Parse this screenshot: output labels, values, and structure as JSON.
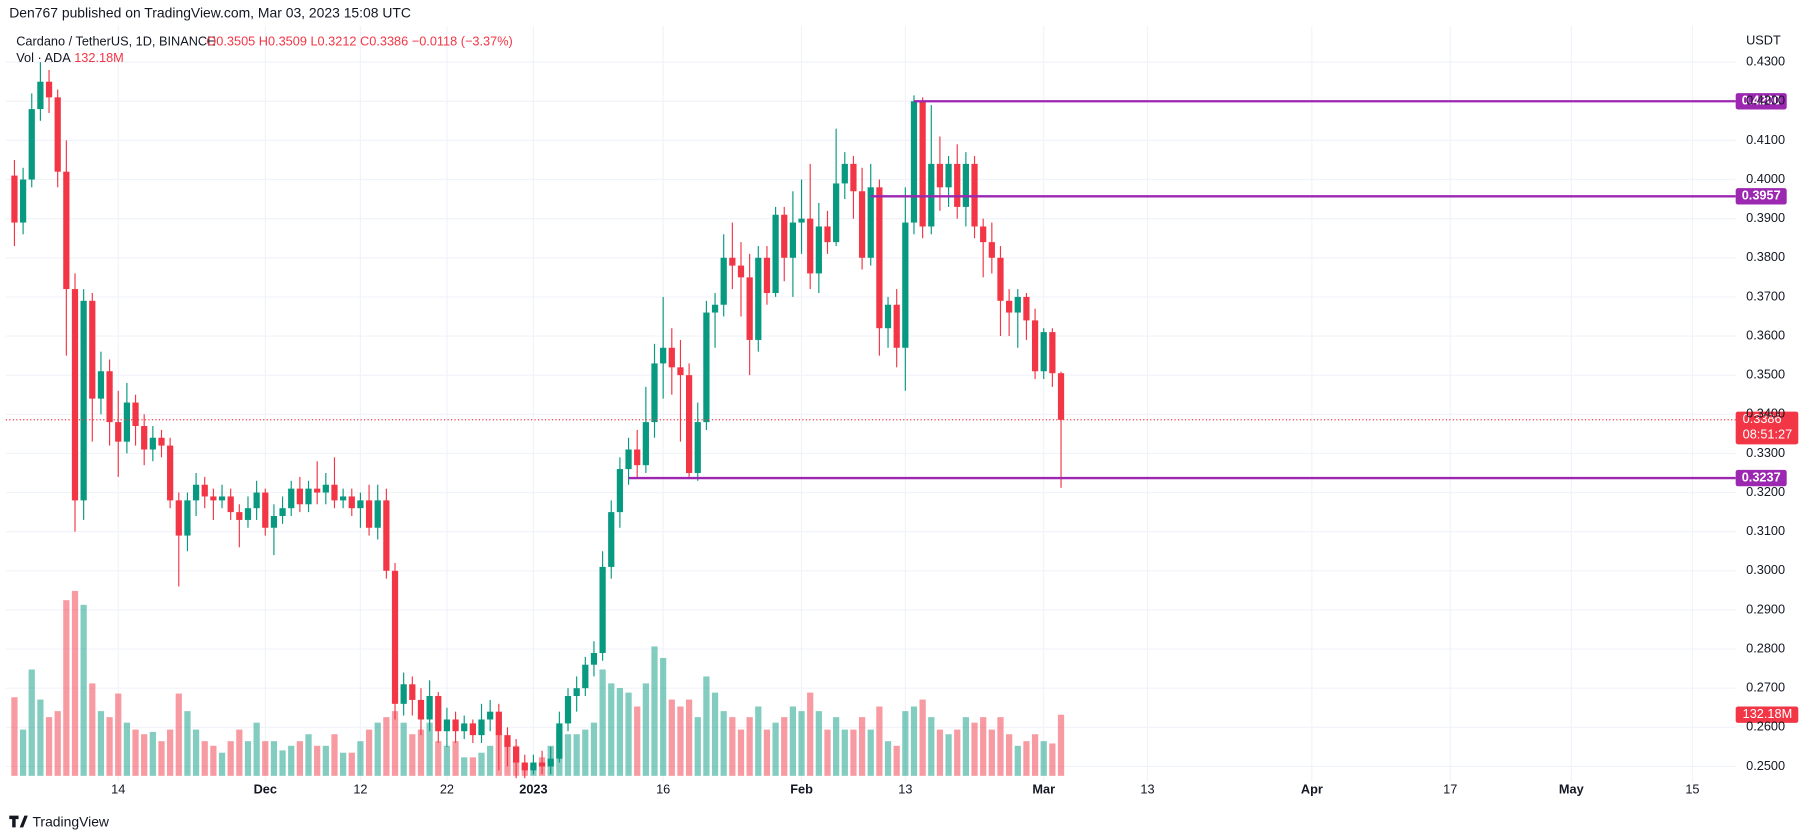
{
  "chart_data": {
    "type": "candlestick",
    "header": "Den767 published on TradingView.com, Mar 03, 2023 15:08 UTC",
    "symbol": "Cardano / TetherUS, 1D, BINANCE",
    "ohlc_text": "O0.3505 H0.3509 L0.3212 C0.3386 −0.0118 (−3.37%)",
    "volume_title": "Vol · ADA",
    "volume_text": "132.18M",
    "currency": "USDT",
    "footer": "TradingView",
    "up_color": "#089981",
    "down_color": "#f23645",
    "level_color": "#9c27b0",
    "grid": true,
    "x": [
      "2022-11-02",
      "2022-11-03",
      "2022-11-04",
      "2022-11-05",
      "2022-11-06",
      "2022-11-07",
      "2022-11-08",
      "2022-11-09",
      "2022-11-10",
      "2022-11-11",
      "2022-11-12",
      "2022-11-13",
      "2022-11-14",
      "2022-11-15",
      "2022-11-16",
      "2022-11-17",
      "2022-11-18",
      "2022-11-19",
      "2022-11-20",
      "2022-11-21",
      "2022-11-22",
      "2022-11-23",
      "2022-11-24",
      "2022-11-25",
      "2022-11-26",
      "2022-11-27",
      "2022-11-28",
      "2022-11-29",
      "2022-11-30",
      "2022-12-01",
      "2022-12-02",
      "2022-12-03",
      "2022-12-04",
      "2022-12-05",
      "2022-12-06",
      "2022-12-07",
      "2022-12-08",
      "2022-12-09",
      "2022-12-10",
      "2022-12-11",
      "2022-12-12",
      "2022-12-13",
      "2022-12-14",
      "2022-12-15",
      "2022-12-16",
      "2022-12-17",
      "2022-12-18",
      "2022-12-19",
      "2022-12-20",
      "2022-12-21",
      "2022-12-22",
      "2022-12-23",
      "2022-12-24",
      "2022-12-25",
      "2022-12-26",
      "2022-12-27",
      "2022-12-28",
      "2022-12-29",
      "2022-12-30",
      "2022-12-31",
      "2023-01-01",
      "2023-01-02",
      "2023-01-03",
      "2023-01-04",
      "2023-01-05",
      "2023-01-06",
      "2023-01-07",
      "2023-01-08",
      "2023-01-09",
      "2023-01-10",
      "2023-01-11",
      "2023-01-12",
      "2023-01-13",
      "2023-01-14",
      "2023-01-15",
      "2023-01-16",
      "2023-01-17",
      "2023-01-18",
      "2023-01-19",
      "2023-01-20",
      "2023-01-21",
      "2023-01-22",
      "2023-01-23",
      "2023-01-24",
      "2023-01-25",
      "2023-01-26",
      "2023-01-27",
      "2023-01-28",
      "2023-01-29",
      "2023-01-30",
      "2023-01-31",
      "2023-02-01",
      "2023-02-02",
      "2023-02-03",
      "2023-02-04",
      "2023-02-05",
      "2023-02-06",
      "2023-02-07",
      "2023-02-08",
      "2023-02-09",
      "2023-02-10",
      "2023-02-11",
      "2023-02-12",
      "2023-02-13",
      "2023-02-14",
      "2023-02-15",
      "2023-02-16",
      "2023-02-17",
      "2023-02-18",
      "2023-02-19",
      "2023-02-20",
      "2023-02-21",
      "2023-02-22",
      "2023-02-23",
      "2023-02-24",
      "2023-02-25",
      "2023-02-26",
      "2023-02-27",
      "2023-02-28",
      "2023-03-01",
      "2023-03-02",
      "2023-03-03"
    ],
    "open": [
      0.401,
      0.389,
      0.4,
      0.418,
      0.425,
      0.421,
      0.402,
      0.372,
      0.318,
      0.369,
      0.344,
      0.351,
      0.338,
      0.333,
      0.343,
      0.337,
      0.331,
      0.334,
      0.332,
      0.318,
      0.309,
      0.318,
      0.322,
      0.319,
      0.318,
      0.319,
      0.315,
      0.313,
      0.316,
      0.32,
      0.311,
      0.314,
      0.316,
      0.321,
      0.317,
      0.321,
      0.32,
      0.322,
      0.318,
      0.319,
      0.316,
      0.318,
      0.311,
      0.318,
      0.3,
      0.266,
      0.271,
      0.267,
      0.262,
      0.268,
      0.259,
      0.262,
      0.259,
      0.261,
      0.258,
      0.262,
      0.264,
      0.258,
      0.255,
      0.251,
      0.249,
      0.251,
      0.25,
      0.252,
      0.261,
      0.268,
      0.27,
      0.276,
      0.279,
      0.301,
      0.315,
      0.326,
      0.331,
      0.327,
      0.338,
      0.353,
      0.357,
      0.352,
      0.35,
      0.325,
      0.338,
      0.366,
      0.368,
      0.38,
      0.378,
      0.375,
      0.359,
      0.38,
      0.371,
      0.391,
      0.38,
      0.389,
      0.39,
      0.376,
      0.388,
      0.384,
      0.399,
      0.404,
      0.397,
      0.38,
      0.398,
      0.362,
      0.368,
      0.357,
      0.389,
      0.42,
      0.388,
      0.404,
      0.398,
      0.404,
      0.393,
      0.404,
      0.388,
      0.384,
      0.38,
      0.369,
      0.366,
      0.37,
      0.364,
      0.351,
      0.361,
      0.3505
    ],
    "high": [
      0.405,
      0.403,
      0.422,
      0.43,
      0.428,
      0.423,
      0.41,
      0.376,
      0.372,
      0.371,
      0.356,
      0.354,
      0.346,
      0.348,
      0.345,
      0.34,
      0.337,
      0.336,
      0.334,
      0.32,
      0.32,
      0.325,
      0.324,
      0.321,
      0.322,
      0.321,
      0.317,
      0.319,
      0.323,
      0.321,
      0.317,
      0.319,
      0.323,
      0.324,
      0.323,
      0.328,
      0.325,
      0.329,
      0.321,
      0.321,
      0.32,
      0.322,
      0.322,
      0.321,
      0.302,
      0.274,
      0.273,
      0.27,
      0.272,
      0.269,
      0.265,
      0.264,
      0.263,
      0.262,
      0.266,
      0.267,
      0.266,
      0.26,
      0.257,
      0.253,
      0.253,
      0.254,
      0.255,
      0.264,
      0.27,
      0.273,
      0.278,
      0.282,
      0.305,
      0.318,
      0.329,
      0.334,
      0.336,
      0.347,
      0.358,
      0.37,
      0.362,
      0.359,
      0.353,
      0.343,
      0.369,
      0.371,
      0.386,
      0.389,
      0.384,
      0.381,
      0.383,
      0.383,
      0.393,
      0.393,
      0.397,
      0.4,
      0.404,
      0.394,
      0.392,
      0.413,
      0.407,
      0.406,
      0.403,
      0.404,
      0.4,
      0.37,
      0.372,
      0.398,
      0.4215,
      0.421,
      0.419,
      0.411,
      0.406,
      0.409,
      0.407,
      0.406,
      0.39,
      0.389,
      0.383,
      0.372,
      0.372,
      0.371,
      0.367,
      0.362,
      0.362,
      0.3509
    ],
    "low": [
      0.383,
      0.386,
      0.398,
      0.415,
      0.417,
      0.398,
      0.355,
      0.31,
      0.313,
      0.333,
      0.34,
      0.332,
      0.324,
      0.33,
      0.332,
      0.327,
      0.328,
      0.329,
      0.316,
      0.296,
      0.305,
      0.314,
      0.316,
      0.313,
      0.316,
      0.313,
      0.306,
      0.311,
      0.313,
      0.309,
      0.304,
      0.312,
      0.314,
      0.315,
      0.315,
      0.317,
      0.317,
      0.316,
      0.316,
      0.314,
      0.311,
      0.309,
      0.308,
      0.298,
      0.262,
      0.263,
      0.263,
      0.258,
      0.259,
      0.256,
      0.255,
      0.256,
      0.257,
      0.256,
      0.256,
      0.259,
      0.249,
      0.25,
      0.247,
      0.247,
      0.248,
      0.248,
      0.248,
      0.251,
      0.259,
      0.264,
      0.268,
      0.273,
      0.277,
      0.298,
      0.311,
      0.322,
      0.324,
      0.325,
      0.334,
      0.344,
      0.345,
      0.333,
      0.324,
      0.323,
      0.336,
      0.357,
      0.365,
      0.372,
      0.365,
      0.35,
      0.356,
      0.368,
      0.37,
      0.374,
      0.37,
      0.381,
      0.372,
      0.371,
      0.381,
      0.383,
      0.395,
      0.39,
      0.377,
      0.378,
      0.355,
      0.357,
      0.352,
      0.346,
      0.386,
      0.385,
      0.386,
      0.392,
      0.393,
      0.39,
      0.388,
      0.385,
      0.375,
      0.376,
      0.36,
      0.36,
      0.357,
      0.359,
      0.349,
      0.349,
      0.347,
      0.3212
    ],
    "close": [
      0.389,
      0.4,
      0.418,
      0.425,
      0.421,
      0.402,
      0.372,
      0.318,
      0.369,
      0.344,
      0.351,
      0.338,
      0.333,
      0.343,
      0.337,
      0.331,
      0.334,
      0.332,
      0.318,
      0.309,
      0.318,
      0.322,
      0.319,
      0.318,
      0.319,
      0.315,
      0.313,
      0.316,
      0.32,
      0.311,
      0.314,
      0.316,
      0.321,
      0.317,
      0.321,
      0.32,
      0.322,
      0.318,
      0.319,
      0.316,
      0.318,
      0.311,
      0.318,
      0.3,
      0.266,
      0.271,
      0.267,
      0.262,
      0.268,
      0.259,
      0.262,
      0.259,
      0.261,
      0.258,
      0.262,
      0.264,
      0.258,
      0.255,
      0.251,
      0.249,
      0.251,
      0.25,
      0.252,
      0.261,
      0.268,
      0.27,
      0.276,
      0.279,
      0.301,
      0.315,
      0.326,
      0.331,
      0.327,
      0.338,
      0.353,
      0.357,
      0.352,
      0.35,
      0.325,
      0.338,
      0.366,
      0.368,
      0.38,
      0.378,
      0.375,
      0.359,
      0.38,
      0.371,
      0.391,
      0.38,
      0.389,
      0.39,
      0.376,
      0.388,
      0.384,
      0.399,
      0.404,
      0.397,
      0.38,
      0.398,
      0.362,
      0.368,
      0.357,
      0.389,
      0.42,
      0.388,
      0.404,
      0.398,
      0.404,
      0.393,
      0.404,
      0.388,
      0.384,
      0.38,
      0.369,
      0.366,
      0.37,
      0.364,
      0.351,
      0.361,
      0.3505,
      0.3386
    ],
    "volume": [
      170,
      100,
      230,
      165,
      127,
      140,
      380,
      400,
      370,
      200,
      140,
      127,
      178,
      115,
      100,
      90,
      95,
      75,
      100,
      178,
      140,
      100,
      75,
      65,
      50,
      75,
      100,
      75,
      115,
      75,
      75,
      55,
      65,
      75,
      90,
      65,
      65,
      90,
      50,
      50,
      75,
      100,
      115,
      127,
      140,
      115,
      90,
      100,
      115,
      75,
      65,
      75,
      40,
      40,
      50,
      65,
      90,
      75,
      65,
      25,
      25,
      40,
      65,
      100,
      90,
      90,
      100,
      115,
      230,
      200,
      190,
      180,
      150,
      200,
      280,
      255,
      165,
      150,
      165,
      127,
      215,
      180,
      140,
      127,
      100,
      127,
      150,
      100,
      115,
      127,
      150,
      140,
      180,
      140,
      100,
      127,
      100,
      100,
      127,
      100,
      150,
      75,
      65,
      140,
      150,
      165,
      127,
      100,
      90,
      100,
      127,
      115,
      127,
      100,
      127,
      90,
      65,
      75,
      90,
      75,
      70,
      132.18
    ],
    "xlim": [
      "2022-11-01",
      "2023-05-20"
    ],
    "xticks": [
      {
        "value": "2022-11-14",
        "label": "14"
      },
      {
        "value": "2022-12-01",
        "label": "Dec"
      },
      {
        "value": "2022-12-12",
        "label": "12"
      },
      {
        "value": "2022-12-22",
        "label": "22"
      },
      {
        "value": "2023-01-01",
        "label": "2023"
      },
      {
        "value": "2023-01-16",
        "label": "16"
      },
      {
        "value": "2023-02-01",
        "label": "Feb"
      },
      {
        "value": "2023-02-13",
        "label": "13"
      },
      {
        "value": "2023-03-01",
        "label": "Mar"
      },
      {
        "value": "2023-03-13",
        "label": "13"
      },
      {
        "value": "2023-04-01",
        "label": "Apr"
      },
      {
        "value": "2023-04-17",
        "label": "17"
      },
      {
        "value": "2023-05-01",
        "label": "May"
      },
      {
        "value": "2023-05-15",
        "label": "15"
      }
    ],
    "ylim": [
      0.2476,
      0.4393
    ],
    "yticks": [
      {
        "value": 0.25,
        "label": "0.2500"
      },
      {
        "value": 0.26,
        "label": "0.2600"
      },
      {
        "value": 0.27,
        "label": "0.2700"
      },
      {
        "value": 0.28,
        "label": "0.2800"
      },
      {
        "value": 0.29,
        "label": "0.2900"
      },
      {
        "value": 0.3,
        "label": "0.3000"
      },
      {
        "value": 0.31,
        "label": "0.3100"
      },
      {
        "value": 0.32,
        "label": "0.3200"
      },
      {
        "value": 0.33,
        "label": "0.3300"
      },
      {
        "value": 0.34,
        "label": "0.3400"
      },
      {
        "value": 0.35,
        "label": "0.3500"
      },
      {
        "value": 0.36,
        "label": "0.3600"
      },
      {
        "value": 0.37,
        "label": "0.3700"
      },
      {
        "value": 0.38,
        "label": "0.3800"
      },
      {
        "value": 0.39,
        "label": "0.3900"
      },
      {
        "value": 0.4,
        "label": "0.4000"
      },
      {
        "value": 0.41,
        "label": "0.4100"
      },
      {
        "value": 0.42,
        "label": "0.4200"
      },
      {
        "value": 0.43,
        "label": "0.4300"
      }
    ],
    "levels": [
      {
        "value": 0.42,
        "label": "0.4200",
        "from": "2023-02-14"
      },
      {
        "value": 0.3957,
        "label": "0.3957",
        "from": "2023-02-09"
      },
      {
        "value": 0.3237,
        "label": "0.3237",
        "from": "2023-01-12"
      }
    ],
    "last_price": {
      "value": 0.3386,
      "label": "0.3386",
      "countdown": "08:51:27"
    }
  }
}
